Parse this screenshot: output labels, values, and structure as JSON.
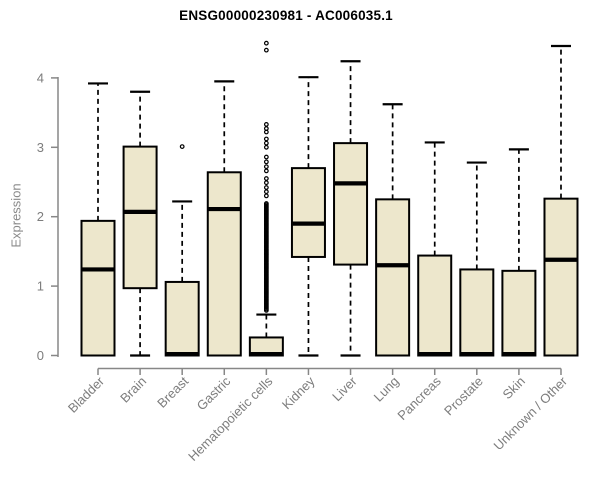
{
  "chart_data": {
    "type": "boxplot",
    "title": "ENSG00000230981 - AC006035.1",
    "ylabel": "Expression",
    "xlabel": "",
    "yticks": [
      0,
      1,
      2,
      3,
      4
    ],
    "ylim": [
      0,
      4.55
    ],
    "grid": false,
    "legend": false,
    "categories": [
      "Bladder",
      "Brain",
      "Breast",
      "Gastric",
      "Hematopoietic cells",
      "Kidney",
      "Liver",
      "Lung",
      "Pancreas",
      "Prostate",
      "Skin",
      "Unknown / Other"
    ],
    "boxes": [
      {
        "category": "Bladder",
        "whisker_low": 0,
        "q1": 0,
        "median": 1.24,
        "q3": 1.94,
        "whisker_high": 3.92,
        "outliers": []
      },
      {
        "category": "Brain",
        "whisker_low": 0,
        "q1": 0.97,
        "median": 2.07,
        "q3": 3.01,
        "whisker_high": 3.8,
        "outliers": []
      },
      {
        "category": "Breast",
        "whisker_low": 0,
        "q1": 0,
        "median": 0.02,
        "q3": 1.06,
        "whisker_high": 2.22,
        "outliers": [
          3.01
        ]
      },
      {
        "category": "Gastric",
        "whisker_low": 0,
        "q1": 0,
        "median": 2.11,
        "q3": 2.64,
        "whisker_high": 3.95,
        "outliers": []
      },
      {
        "category": "Hematopoietic cells",
        "whisker_low": 0,
        "q1": 0,
        "median": 0.02,
        "q3": 0.26,
        "whisker_high": 0.59,
        "outliers": [
          2.3,
          2.36,
          2.42,
          2.49,
          2.55,
          2.66,
          2.72,
          2.79,
          2.86,
          3.0,
          3.06,
          3.12,
          3.22,
          3.27,
          3.33,
          4.4,
          4.5
        ],
        "outlier_dense_range": {
          "from": 0.65,
          "to": 2.2,
          "step": 0.02
        }
      },
      {
        "category": "Kidney",
        "whisker_low": 0,
        "q1": 1.42,
        "median": 1.9,
        "q3": 2.7,
        "whisker_high": 4.01,
        "outliers": []
      },
      {
        "category": "Liver",
        "whisker_low": 0,
        "q1": 1.31,
        "median": 2.48,
        "q3": 3.06,
        "whisker_high": 4.24,
        "outliers": []
      },
      {
        "category": "Lung",
        "whisker_low": 0,
        "q1": 0,
        "median": 1.3,
        "q3": 2.25,
        "whisker_high": 3.62,
        "outliers": []
      },
      {
        "category": "Pancreas",
        "whisker_low": 0,
        "q1": 0,
        "median": 0.02,
        "q3": 1.44,
        "whisker_high": 3.07,
        "outliers": []
      },
      {
        "category": "Prostate",
        "whisker_low": 0,
        "q1": 0,
        "median": 0.02,
        "q3": 1.24,
        "whisker_high": 2.78,
        "outliers": []
      },
      {
        "category": "Skin",
        "whisker_low": 0,
        "q1": 0,
        "median": 0.02,
        "q3": 1.22,
        "whisker_high": 2.97,
        "outliers": []
      },
      {
        "category": "Unknown / Other",
        "whisker_low": 0,
        "q1": 0,
        "median": 1.38,
        "q3": 2.26,
        "whisker_high": 4.46,
        "outliers": []
      }
    ],
    "colors": {
      "background": "#ffffff",
      "box_fill": "#ede7cc",
      "box_border": "#000000",
      "median": "#000000",
      "whisker": "#000000",
      "outlier": "#000000",
      "axis": "#878787",
      "tick_label": "#7d7d7d",
      "title": "#000000"
    }
  }
}
